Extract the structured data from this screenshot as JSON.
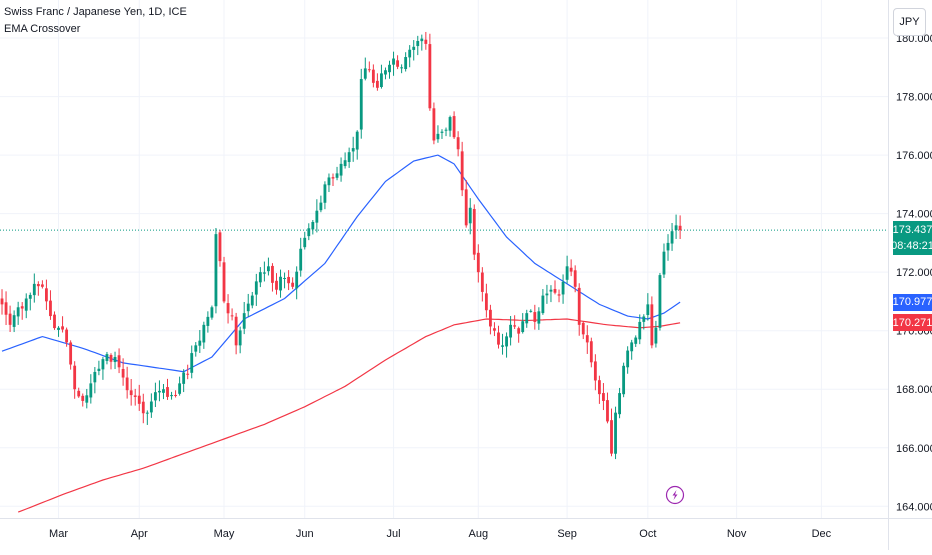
{
  "header": {
    "symbol_line": "Swiss Franc / Japanese Yen, 1D, ICE",
    "indicator_name": "EMA Crossover",
    "currency_button": "JPY"
  },
  "price_tags": {
    "last_price": "173.437",
    "countdown": "08:48:21",
    "ema_fast": "170.977",
    "ema_slow": "170.271"
  },
  "colors": {
    "up": "#089981",
    "down": "#f23645",
    "ema_fast": "#2962ff",
    "ema_slow": "#f23645",
    "last_line": "#089981",
    "grid": "#f0f3fa",
    "axis_text": "#131722"
  },
  "event_icon": "lightning-icon",
  "chart_data": {
    "type": "candlestick",
    "y_ticks": [
      "164.000",
      "166.000",
      "168.000",
      "170.000",
      "172.000",
      "174.000",
      "176.000",
      "178.000",
      "180.000"
    ],
    "ylim": [
      163.6,
      181.3
    ],
    "x_labels": [
      "Mar",
      "Apr",
      "May",
      "Jun",
      "Jul",
      "Aug",
      "Sep",
      "Oct",
      "Nov",
      "Dec"
    ],
    "x_label_bar_index": [
      14,
      34,
      55,
      75,
      97,
      118,
      140,
      160,
      182,
      203
    ],
    "num_slots": 220,
    "grid": true,
    "last_price": 173.437,
    "close_anchors": [
      [
        0,
        170.9
      ],
      [
        2,
        170.2
      ],
      [
        4,
        170.8
      ],
      [
        6,
        171.1
      ],
      [
        8,
        171.6
      ],
      [
        10,
        171.5
      ],
      [
        12,
        170.5
      ],
      [
        14,
        170.1
      ],
      [
        16,
        169.6
      ],
      [
        18,
        168.0
      ],
      [
        20,
        167.6
      ],
      [
        22,
        168.2
      ],
      [
        24,
        168.7
      ],
      [
        26,
        169.2
      ],
      [
        28,
        169.1
      ],
      [
        30,
        168.4
      ],
      [
        32,
        167.8
      ],
      [
        34,
        167.5
      ],
      [
        36,
        167.2
      ],
      [
        38,
        167.9
      ],
      [
        40,
        168.0
      ],
      [
        42,
        167.8
      ],
      [
        44,
        168.2
      ],
      [
        46,
        168.5
      ],
      [
        48,
        169.5
      ],
      [
        50,
        170.2
      ],
      [
        52,
        170.8
      ],
      [
        53,
        173.3
      ],
      [
        55,
        171.0
      ],
      [
        57,
        170.5
      ],
      [
        58,
        169.5
      ],
      [
        60,
        170.6
      ],
      [
        62,
        171.2
      ],
      [
        64,
        172.0
      ],
      [
        66,
        172.2
      ],
      [
        68,
        171.4
      ],
      [
        70,
        171.8
      ],
      [
        72,
        171.5
      ],
      [
        74,
        172.8
      ],
      [
        76,
        173.5
      ],
      [
        78,
        174.1
      ],
      [
        80,
        175.0
      ],
      [
        82,
        175.2
      ],
      [
        84,
        175.7
      ],
      [
        86,
        176.1
      ],
      [
        88,
        176.8
      ],
      [
        89,
        178.6
      ],
      [
        91,
        178.9
      ],
      [
        93,
        178.3
      ],
      [
        95,
        178.9
      ],
      [
        97,
        179.3
      ],
      [
        99,
        179.0
      ],
      [
        101,
        179.6
      ],
      [
        103,
        179.9
      ],
      [
        105,
        179.8
      ],
      [
        106,
        177.6
      ],
      [
        107,
        176.5
      ],
      [
        109,
        176.8
      ],
      [
        111,
        177.3
      ],
      [
        113,
        176.2
      ],
      [
        114,
        174.8
      ],
      [
        115,
        173.6
      ],
      [
        116,
        174.2
      ],
      [
        117,
        172.6
      ],
      [
        118,
        172.0
      ],
      [
        120,
        170.7
      ],
      [
        122,
        170.0
      ],
      [
        124,
        169.5
      ],
      [
        126,
        170.2
      ],
      [
        128,
        169.9
      ],
      [
        130,
        170.6
      ],
      [
        132,
        170.3
      ],
      [
        134,
        171.2
      ],
      [
        136,
        171.4
      ],
      [
        138,
        171.2
      ],
      [
        140,
        172.2
      ],
      [
        142,
        171.5
      ],
      [
        143,
        170.2
      ],
      [
        145,
        169.6
      ],
      [
        147,
        168.3
      ],
      [
        149,
        167.6
      ],
      [
        150,
        166.9
      ],
      [
        151,
        165.8
      ],
      [
        152,
        167.2
      ],
      [
        154,
        168.8
      ],
      [
        156,
        169.6
      ],
      [
        158,
        170.3
      ],
      [
        160,
        170.9
      ],
      [
        161,
        169.5
      ],
      [
        162,
        170.1
      ],
      [
        163,
        171.9
      ],
      [
        164,
        172.7
      ],
      [
        165,
        173.0
      ],
      [
        166,
        173.4
      ],
      [
        167,
        173.6
      ],
      [
        168,
        173.437
      ]
    ],
    "series": [
      {
        "name": "EMA fast",
        "color": "#2962ff",
        "points": [
          [
            0,
            169.3
          ],
          [
            10,
            169.8
          ],
          [
            20,
            169.4
          ],
          [
            30,
            168.9
          ],
          [
            40,
            168.7
          ],
          [
            45,
            168.6
          ],
          [
            52,
            169.1
          ],
          [
            60,
            170.4
          ],
          [
            70,
            171.1
          ],
          [
            80,
            172.3
          ],
          [
            88,
            173.9
          ],
          [
            95,
            175.1
          ],
          [
            102,
            175.8
          ],
          [
            108,
            176.0
          ],
          [
            112,
            175.7
          ],
          [
            118,
            174.5
          ],
          [
            125,
            173.2
          ],
          [
            132,
            172.3
          ],
          [
            140,
            171.6
          ],
          [
            148,
            170.9
          ],
          [
            155,
            170.5
          ],
          [
            160,
            170.4
          ],
          [
            164,
            170.6
          ],
          [
            168,
            170.977
          ]
        ]
      },
      {
        "name": "EMA slow",
        "color": "#f23645",
        "points": [
          [
            4,
            163.8
          ],
          [
            15,
            164.4
          ],
          [
            25,
            164.9
          ],
          [
            35,
            165.3
          ],
          [
            45,
            165.8
          ],
          [
            55,
            166.3
          ],
          [
            65,
            166.8
          ],
          [
            75,
            167.4
          ],
          [
            85,
            168.1
          ],
          [
            95,
            169.0
          ],
          [
            105,
            169.8
          ],
          [
            112,
            170.2
          ],
          [
            120,
            170.4
          ],
          [
            130,
            170.35
          ],
          [
            140,
            170.4
          ],
          [
            150,
            170.2
          ],
          [
            158,
            170.1
          ],
          [
            163,
            170.15
          ],
          [
            168,
            170.271
          ]
        ]
      }
    ]
  }
}
